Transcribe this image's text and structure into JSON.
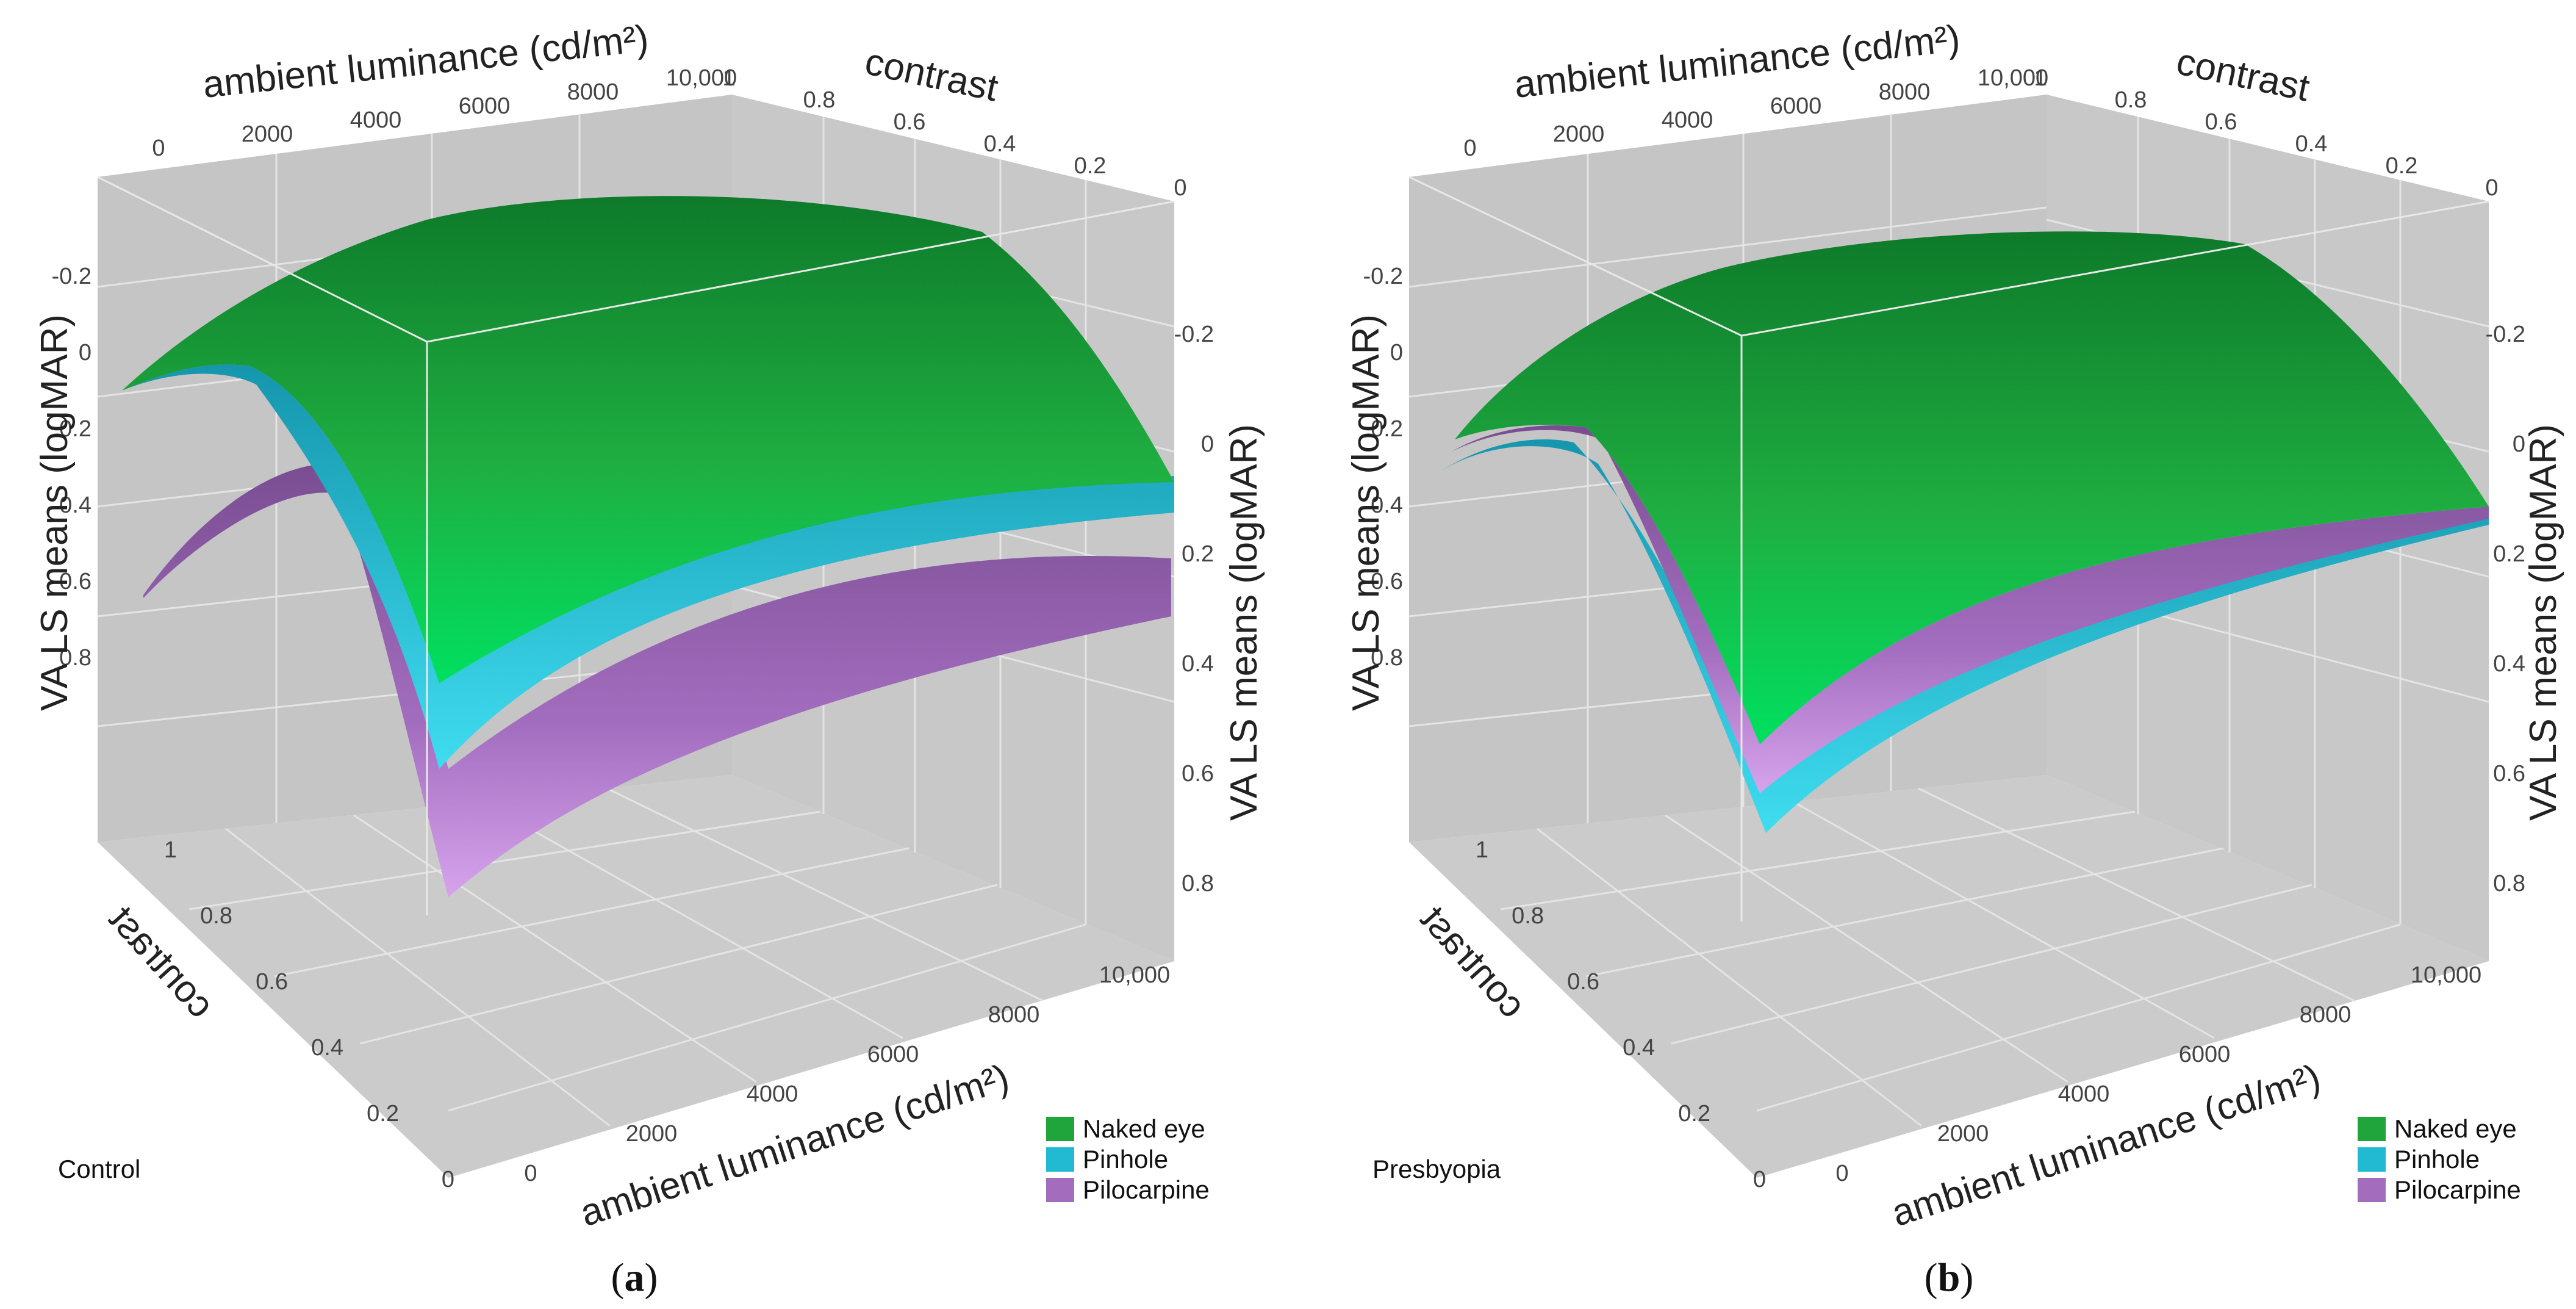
{
  "colors": {
    "naked_eye": "#1fa53c",
    "pinhole": "#22b9d2",
    "pilocarpine": "#a46cbc",
    "background_wall": "#c5c5c5",
    "grid": "#e6e6e6"
  },
  "chart_data": [
    {
      "type": "surface3d",
      "group_label": "Control",
      "caption_letter": "a",
      "caption_open": "(",
      "caption_close": ")",
      "x_label": "ambient luminance (cd/m²)",
      "y_label": "contrast",
      "z_label": "VA LS means (logMAR)",
      "x_ticks": [
        "0",
        "2000",
        "4000",
        "6000",
        "8000",
        "10,000"
      ],
      "y_ticks": [
        "0",
        "0.2",
        "0.4",
        "0.6",
        "0.8",
        "1"
      ],
      "z_ticks_left": [
        "-0.2",
        "0",
        "0.2",
        "0.4",
        "0.6",
        "0.8"
      ],
      "z_ticks_right": [
        "-0.2",
        "0",
        "0.2",
        "0.4",
        "0.6",
        "0.8"
      ],
      "x_range": [
        0,
        10000
      ],
      "y_range": [
        0,
        1
      ],
      "z_range": [
        -0.4,
        1.0
      ],
      "series": [
        {
          "name": "Naked eye",
          "z_at_low_contrast": 0.6,
          "z_at_high_contrast": -0.2,
          "dip_at_zero_luminance": 0.3,
          "plateau_luminance": 6000
        },
        {
          "name": "Pinhole",
          "z_at_low_contrast": 0.7,
          "z_at_high_contrast": 0.0,
          "dip_at_zero_luminance": 0.3,
          "plateau_luminance": 6000
        },
        {
          "name": "Pilocarpine",
          "z_at_low_contrast": 0.9,
          "z_at_high_contrast": 0.2,
          "dip_at_zero_luminance": 0.3,
          "plateau_luminance": 6000
        }
      ]
    },
    {
      "type": "surface3d",
      "group_label": "Presbyopia",
      "caption_letter": "b",
      "caption_open": "(",
      "caption_close": ")",
      "x_label": "ambient luminance (cd/m²)",
      "y_label": "contrast",
      "z_label": "VA LS means (logMAR)",
      "x_ticks": [
        "0",
        "2000",
        "4000",
        "6000",
        "8000",
        "10,000"
      ],
      "y_ticks": [
        "0",
        "0.2",
        "0.4",
        "0.6",
        "0.8",
        "1"
      ],
      "z_ticks_left": [
        "-0.2",
        "0",
        "0.2",
        "0.4",
        "0.6",
        "0.8"
      ],
      "z_ticks_right": [
        "-0.2",
        "0",
        "0.2",
        "0.4",
        "0.6",
        "0.8"
      ],
      "x_range": [
        0,
        10000
      ],
      "y_range": [
        0,
        1
      ],
      "z_range": [
        -0.4,
        1.0
      ],
      "series": [
        {
          "name": "Naked eye",
          "z_at_low_contrast": 0.7,
          "z_at_high_contrast": -0.2,
          "dip_at_zero_luminance": 0.35,
          "plateau_luminance": 6000
        },
        {
          "name": "Pinhole",
          "z_at_low_contrast": 0.9,
          "z_at_high_contrast": 0.1,
          "dip_at_zero_luminance": 0.35,
          "plateau_luminance": 6000
        },
        {
          "name": "Pilocarpine",
          "z_at_low_contrast": 0.8,
          "z_at_high_contrast": 0.05,
          "dip_at_zero_luminance": 0.35,
          "plateau_luminance": 6000
        }
      ]
    }
  ]
}
